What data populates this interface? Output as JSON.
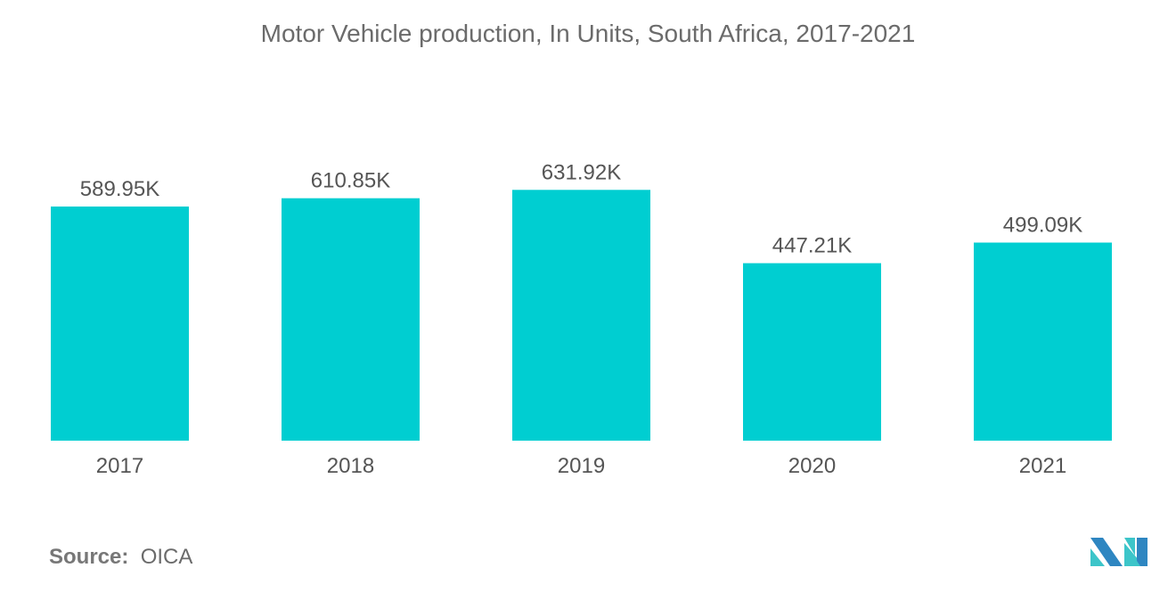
{
  "chart_data": {
    "type": "bar",
    "title": "Motor Vehicle production, In Units, South Africa, 2017-2021",
    "categories": [
      "2017",
      "2018",
      "2019",
      "2020",
      "2021"
    ],
    "values": [
      589.95,
      610.85,
      631.92,
      447.21,
      499.09
    ],
    "data_labels": [
      "589.95K",
      "610.85K",
      "631.92K",
      "447.21K",
      "499.09K"
    ],
    "unit": "K",
    "ylim": [
      0,
      631.92
    ],
    "grid": false,
    "bar_color": "#00CED1"
  },
  "source": {
    "label": "Source:",
    "value": "OICA"
  }
}
